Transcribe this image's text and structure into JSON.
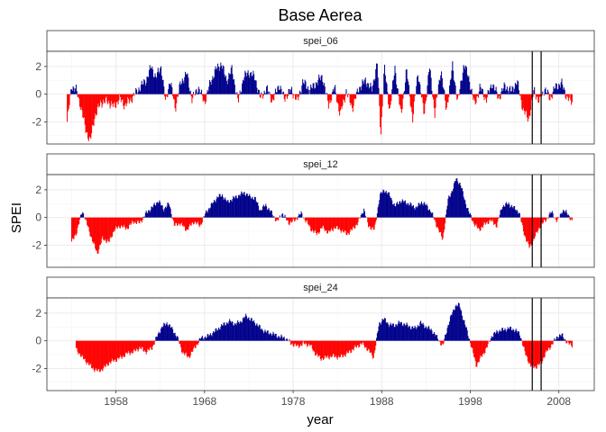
{
  "chart_data": {
    "type": "bar",
    "title": "Base Aerea",
    "xlabel": "year",
    "ylabel": "SPEI",
    "xlim": [
      1950.2,
      2012
    ],
    "ylim": [
      -3.6,
      3.1
    ],
    "x_ticks": [
      1958,
      1968,
      1978,
      1988,
      1998,
      2008
    ],
    "y_ticks": [
      -2,
      0,
      2
    ],
    "grid": true,
    "colors": {
      "positive": "#00008B",
      "negative": "#FF0000",
      "vline": "#000000"
    },
    "vlines": [
      2005,
      2006
    ],
    "panels": [
      {
        "name": "spei_06",
        "start": 1952.5,
        "end": 2009.5,
        "anchors": [
          [
            1952.5,
            -2.0
          ],
          [
            1953.0,
            0.6
          ],
          [
            1953.5,
            0.3
          ],
          [
            1954.0,
            -0.8
          ],
          [
            1954.6,
            -2.6
          ],
          [
            1955.1,
            -3.4
          ],
          [
            1955.6,
            -1.6
          ],
          [
            1956.3,
            -0.6
          ],
          [
            1957.0,
            -0.5
          ],
          [
            1957.8,
            -0.9
          ],
          [
            1958.4,
            -0.3
          ],
          [
            1959.0,
            -0.8
          ],
          [
            1959.8,
            -0.3
          ],
          [
            1960.6,
            0.4
          ],
          [
            1961.4,
            1.0
          ],
          [
            1962.0,
            2.0
          ],
          [
            1962.5,
            1.2
          ],
          [
            1963.1,
            2.0
          ],
          [
            1963.6,
            -0.6
          ],
          [
            1964.1,
            1.0
          ],
          [
            1964.7,
            -1.0
          ],
          [
            1965.3,
            0.8
          ],
          [
            1966.0,
            1.5
          ],
          [
            1966.6,
            -0.4
          ],
          [
            1967.3,
            0.5
          ],
          [
            1968.0,
            -0.6
          ],
          [
            1968.7,
            0.9
          ],
          [
            1969.3,
            1.8
          ],
          [
            1969.9,
            2.2
          ],
          [
            1970.5,
            1.0
          ],
          [
            1971.1,
            1.8
          ],
          [
            1971.8,
            -0.6
          ],
          [
            1972.4,
            1.2
          ],
          [
            1973.0,
            1.6
          ],
          [
            1973.7,
            1.2
          ],
          [
            1974.3,
            -0.3
          ],
          [
            1975.0,
            0.4
          ],
          [
            1975.7,
            -0.5
          ],
          [
            1976.4,
            0.7
          ],
          [
            1977.0,
            -0.3
          ],
          [
            1977.8,
            0.3
          ],
          [
            1978.5,
            -0.5
          ],
          [
            1979.1,
            0.9
          ],
          [
            1979.9,
            0.3
          ],
          [
            1980.6,
            0.8
          ],
          [
            1981.3,
            1.3
          ],
          [
            1982.0,
            -0.8
          ],
          [
            1982.7,
            0.5
          ],
          [
            1983.3,
            -1.5
          ],
          [
            1984.0,
            0.2
          ],
          [
            1984.7,
            -1.0
          ],
          [
            1985.4,
            0.4
          ],
          [
            1986.2,
            1.0
          ],
          [
            1986.9,
            0.3
          ],
          [
            1987.5,
            2.3
          ],
          [
            1987.9,
            -3.0
          ],
          [
            1988.3,
            2.0
          ],
          [
            1988.9,
            -1.2
          ],
          [
            1989.5,
            1.9
          ],
          [
            1990.2,
            -1.6
          ],
          [
            1990.8,
            1.8
          ],
          [
            1991.5,
            -1.8
          ],
          [
            1992.1,
            1.6
          ],
          [
            1992.8,
            -1.5
          ],
          [
            1993.4,
            2.0
          ],
          [
            1994.0,
            -1.4
          ],
          [
            1994.7,
            1.8
          ],
          [
            1995.3,
            -1.2
          ],
          [
            1996.0,
            2.0
          ],
          [
            1996.6,
            -0.6
          ],
          [
            1997.3,
            2.2
          ],
          [
            1997.9,
            1.0
          ],
          [
            1998.5,
            -0.8
          ],
          [
            1999.1,
            0.5
          ],
          [
            1999.8,
            -0.4
          ],
          [
            2000.5,
            0.8
          ],
          [
            2001.2,
            -0.3
          ],
          [
            2001.9,
            0.6
          ],
          [
            2002.6,
            0.2
          ],
          [
            2003.3,
            0.9
          ],
          [
            2004.0,
            -1.2
          ],
          [
            2004.6,
            -1.8
          ],
          [
            2005.2,
            0.3
          ],
          [
            2005.8,
            -0.6
          ],
          [
            2006.4,
            0.4
          ],
          [
            2007.0,
            -0.3
          ],
          [
            2007.6,
            0.5
          ],
          [
            2008.3,
            0.8
          ],
          [
            2008.9,
            -0.2
          ],
          [
            2009.5,
            -0.6
          ]
        ]
      },
      {
        "name": "spei_12",
        "start": 1953.0,
        "end": 2009.5,
        "anchors": [
          [
            1953.0,
            -1.8
          ],
          [
            1953.6,
            -1.0
          ],
          [
            1954.2,
            0.5
          ],
          [
            1954.8,
            -0.6
          ],
          [
            1955.3,
            -1.6
          ],
          [
            1955.9,
            -2.6
          ],
          [
            1956.5,
            -1.5
          ],
          [
            1957.2,
            -1.8
          ],
          [
            1957.8,
            -0.9
          ],
          [
            1958.5,
            -0.6
          ],
          [
            1959.2,
            -0.8
          ],
          [
            1960.0,
            -0.3
          ],
          [
            1960.7,
            -0.4
          ],
          [
            1961.4,
            0.3
          ],
          [
            1962.2,
            0.8
          ],
          [
            1962.8,
            1.2
          ],
          [
            1963.4,
            0.6
          ],
          [
            1964.0,
            1.0
          ],
          [
            1964.6,
            -0.6
          ],
          [
            1965.2,
            -0.4
          ],
          [
            1966.0,
            -0.9
          ],
          [
            1966.8,
            -0.3
          ],
          [
            1967.5,
            -0.6
          ],
          [
            1968.2,
            0.4
          ],
          [
            1968.9,
            1.0
          ],
          [
            1969.5,
            1.5
          ],
          [
            1970.0,
            1.6
          ],
          [
            1970.6,
            1.1
          ],
          [
            1971.3,
            1.4
          ],
          [
            1971.9,
            1.6
          ],
          [
            1972.5,
            1.8
          ],
          [
            1973.1,
            1.5
          ],
          [
            1973.7,
            1.4
          ],
          [
            1974.3,
            0.5
          ],
          [
            1974.9,
            0.9
          ],
          [
            1975.5,
            0.4
          ],
          [
            1976.2,
            -0.3
          ],
          [
            1976.8,
            0.3
          ],
          [
            1977.5,
            -0.4
          ],
          [
            1978.2,
            -0.2
          ],
          [
            1978.9,
            0.3
          ],
          [
            1979.5,
            -0.3
          ],
          [
            1980.1,
            -0.9
          ],
          [
            1980.7,
            -1.2
          ],
          [
            1981.3,
            -0.7
          ],
          [
            1982.0,
            -1.1
          ],
          [
            1982.7,
            -0.7
          ],
          [
            1983.4,
            -0.9
          ],
          [
            1984.1,
            -1.2
          ],
          [
            1984.8,
            -0.8
          ],
          [
            1985.3,
            -0.4
          ],
          [
            1986.0,
            0.6
          ],
          [
            1986.5,
            -0.6
          ],
          [
            1987.2,
            -0.9
          ],
          [
            1987.8,
            1.6
          ],
          [
            1988.3,
            2.0
          ],
          [
            1988.9,
            1.6
          ],
          [
            1989.5,
            0.8
          ],
          [
            1990.1,
            1.2
          ],
          [
            1990.7,
            1.1
          ],
          [
            1991.3,
            0.9
          ],
          [
            1991.9,
            0.7
          ],
          [
            1992.5,
            1.1
          ],
          [
            1993.0,
            0.9
          ],
          [
            1993.6,
            0.4
          ],
          [
            1994.3,
            -0.7
          ],
          [
            1994.9,
            -1.6
          ],
          [
            1995.5,
            1.3
          ],
          [
            1996.0,
            2.0
          ],
          [
            1996.4,
            2.8
          ],
          [
            1996.9,
            2.4
          ],
          [
            1997.4,
            1.2
          ],
          [
            1997.9,
            0.3
          ],
          [
            1998.4,
            -0.4
          ],
          [
            1999.0,
            -0.9
          ],
          [
            1999.6,
            -0.5
          ],
          [
            2000.3,
            -0.2
          ],
          [
            2001.0,
            -0.6
          ],
          [
            2001.6,
            0.8
          ],
          [
            2002.3,
            1.0
          ],
          [
            2002.9,
            0.7
          ],
          [
            2003.5,
            0.4
          ],
          [
            2004.1,
            -1.2
          ],
          [
            2004.7,
            -2.2
          ],
          [
            2005.3,
            -1.4
          ],
          [
            2005.9,
            -0.6
          ],
          [
            2006.5,
            -0.2
          ],
          [
            2007.2,
            0.4
          ],
          [
            2007.8,
            -0.3
          ],
          [
            2008.4,
            0.5
          ],
          [
            2009.0,
            0.3
          ],
          [
            2009.5,
            -0.3
          ]
        ]
      },
      {
        "name": "spei_24",
        "start": 1953.5,
        "end": 2009.5,
        "anchors": [
          [
            1953.5,
            -0.6
          ],
          [
            1954.2,
            -1.2
          ],
          [
            1954.8,
            -1.6
          ],
          [
            1955.4,
            -2.0
          ],
          [
            1956.0,
            -2.2
          ],
          [
            1956.6,
            -2.0
          ],
          [
            1957.2,
            -1.6
          ],
          [
            1957.9,
            -1.4
          ],
          [
            1958.6,
            -1.2
          ],
          [
            1959.3,
            -0.9
          ],
          [
            1960.0,
            -0.8
          ],
          [
            1960.7,
            -0.5
          ],
          [
            1961.4,
            -0.8
          ],
          [
            1962.1,
            -0.5
          ],
          [
            1962.7,
            0.4
          ],
          [
            1963.2,
            1.0
          ],
          [
            1963.8,
            1.3
          ],
          [
            1964.4,
            0.8
          ],
          [
            1964.9,
            0.3
          ],
          [
            1965.5,
            -0.8
          ],
          [
            1966.2,
            -1.2
          ],
          [
            1966.9,
            -0.5
          ],
          [
            1967.6,
            0.2
          ],
          [
            1968.3,
            0.3
          ],
          [
            1969.0,
            0.6
          ],
          [
            1969.6,
            0.9
          ],
          [
            1970.2,
            1.2
          ],
          [
            1970.9,
            1.4
          ],
          [
            1971.5,
            1.2
          ],
          [
            1972.1,
            1.4
          ],
          [
            1972.7,
            1.8
          ],
          [
            1973.3,
            1.5
          ],
          [
            1973.9,
            1.2
          ],
          [
            1974.5,
            0.8
          ],
          [
            1975.1,
            0.6
          ],
          [
            1975.7,
            0.5
          ],
          [
            1976.4,
            0.3
          ],
          [
            1977.1,
            0.2
          ],
          [
            1977.8,
            -0.2
          ],
          [
            1978.5,
            -0.4
          ],
          [
            1979.2,
            -0.2
          ],
          [
            1979.9,
            -0.3
          ],
          [
            1980.5,
            -0.9
          ],
          [
            1981.1,
            -1.3
          ],
          [
            1981.8,
            -1.2
          ],
          [
            1982.5,
            -1.1
          ],
          [
            1983.2,
            -1.2
          ],
          [
            1983.9,
            -1.0
          ],
          [
            1984.6,
            -0.7
          ],
          [
            1985.2,
            -0.4
          ],
          [
            1985.8,
            -0.2
          ],
          [
            1986.4,
            -0.6
          ],
          [
            1987.1,
            -1.2
          ],
          [
            1987.7,
            1.2
          ],
          [
            1988.2,
            1.6
          ],
          [
            1988.8,
            1.2
          ],
          [
            1989.4,
            1.1
          ],
          [
            1990.0,
            1.3
          ],
          [
            1990.6,
            1.2
          ],
          [
            1991.2,
            1.0
          ],
          [
            1991.8,
            0.9
          ],
          [
            1992.4,
            1.3
          ],
          [
            1993.0,
            1.0
          ],
          [
            1993.6,
            0.8
          ],
          [
            1994.2,
            0.3
          ],
          [
            1994.9,
            -0.4
          ],
          [
            1995.4,
            0.9
          ],
          [
            1995.9,
            1.9
          ],
          [
            1996.3,
            2.5
          ],
          [
            1996.8,
            2.6
          ],
          [
            1997.2,
            1.6
          ],
          [
            1997.7,
            0.6
          ],
          [
            1998.2,
            -0.6
          ],
          [
            1998.7,
            -1.8
          ],
          [
            1999.2,
            -1.2
          ],
          [
            1999.8,
            -0.6
          ],
          [
            2000.4,
            0.3
          ],
          [
            2001.1,
            0.7
          ],
          [
            2001.8,
            0.8
          ],
          [
            2002.4,
            0.9
          ],
          [
            2003.0,
            0.8
          ],
          [
            2003.6,
            0.5
          ],
          [
            2004.2,
            -0.9
          ],
          [
            2004.8,
            -1.8
          ],
          [
            2005.4,
            -1.9
          ],
          [
            2006.0,
            -1.6
          ],
          [
            2006.6,
            -0.8
          ],
          [
            2007.2,
            -0.3
          ],
          [
            2007.8,
            0.3
          ],
          [
            2008.4,
            0.4
          ],
          [
            2009.0,
            -0.2
          ],
          [
            2009.5,
            -0.3
          ]
        ]
      }
    ]
  }
}
